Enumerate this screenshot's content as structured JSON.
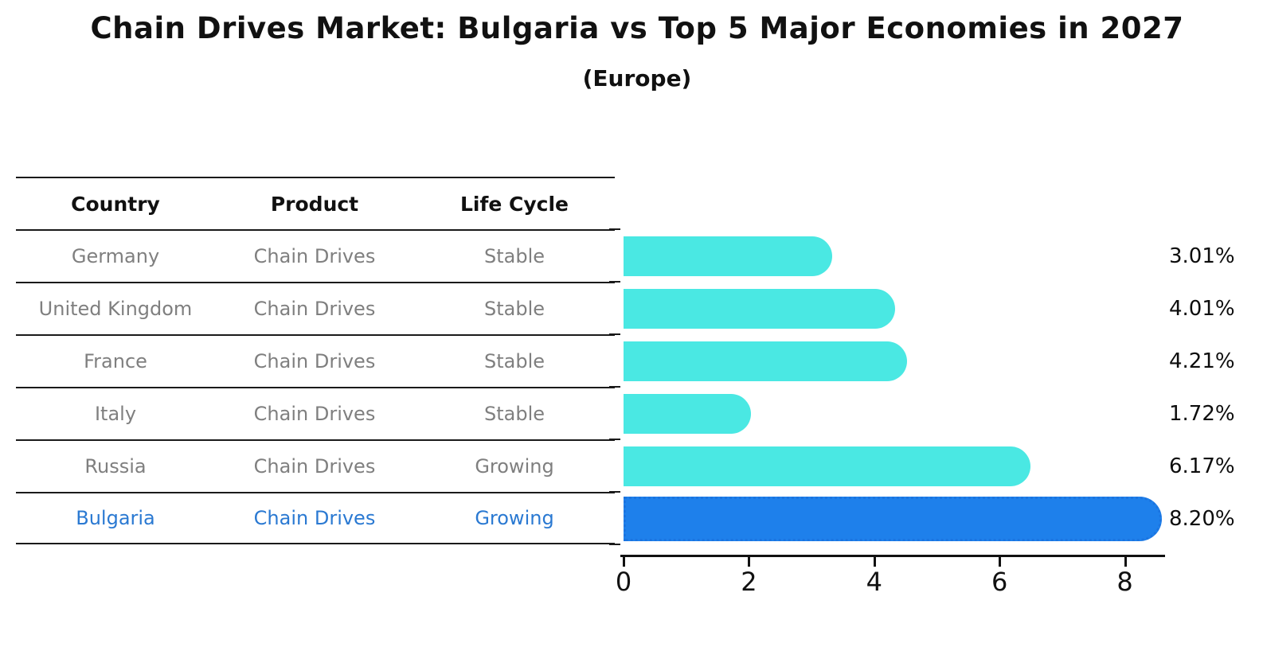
{
  "title": "Chain Drives Market: Bulgaria vs Top 5 Major Economies in 2027",
  "subtitle": "(Europe)",
  "table": {
    "headers": [
      "Country",
      "Product",
      "Life Cycle"
    ],
    "rows": [
      {
        "country": "Germany",
        "product": "Chain Drives",
        "life_cycle": "Stable",
        "highlight": false
      },
      {
        "country": "United Kingdom",
        "product": "Chain Drives",
        "life_cycle": "Stable",
        "highlight": false
      },
      {
        "country": "France",
        "product": "Chain Drives",
        "life_cycle": "Stable",
        "highlight": false
      },
      {
        "country": "Italy",
        "product": "Chain Drives",
        "life_cycle": "Stable",
        "highlight": false
      },
      {
        "country": "Russia",
        "product": "Chain Drives",
        "life_cycle": "Growing",
        "highlight": false
      },
      {
        "country": "Bulgaria",
        "product": "Chain Drives",
        "life_cycle": "Growing",
        "highlight": true
      }
    ]
  },
  "chart_data": {
    "type": "bar",
    "orientation": "horizontal",
    "title": "Chain Drives Market: Bulgaria vs Top 5 Major Economies in 2027",
    "subtitle": "(Europe)",
    "categories": [
      "Germany",
      "United Kingdom",
      "France",
      "Italy",
      "Russia",
      "Bulgaria"
    ],
    "values": [
      3.01,
      4.01,
      4.21,
      1.72,
      6.17,
      8.2
    ],
    "value_labels": [
      "3.01%",
      "4.01%",
      "4.21%",
      "1.72%",
      "6.17%",
      "8.20%"
    ],
    "unit": "%",
    "xticks": [
      0,
      2,
      4,
      6,
      8
    ],
    "xlim": [
      0,
      8.6
    ],
    "grid": false,
    "legend": false,
    "highlight_index": 5,
    "bar_color": "#4AE8E3",
    "highlight_color": "#1E80EB",
    "highlight_edge_color": "#1B74E0"
  },
  "colors": {
    "background": "#FFFFFF",
    "text": "#111111",
    "muted_text": "#7F7F7F",
    "highlight_text": "#2A79D2",
    "line": "#1A1A1A"
  }
}
